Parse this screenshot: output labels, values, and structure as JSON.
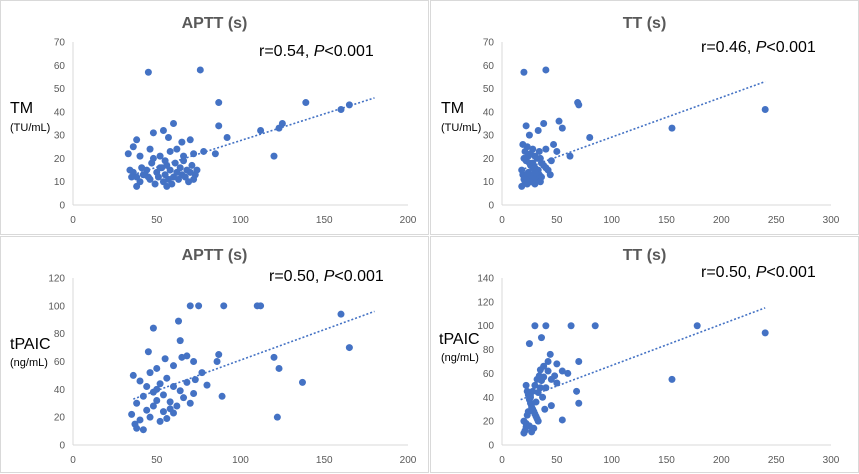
{
  "colors": {
    "points": "#4472c4",
    "trend": "#4472c4",
    "axis": "#d9d9d9",
    "tick": "#595959"
  },
  "chart_data": [
    {
      "id": "tl",
      "type": "scatter",
      "title": "APTT (s)",
      "ylabel": "TM",
      "yunit": "(TU/mL)",
      "stat_prefix": "r=0.54, ",
      "stat_p": "P",
      "stat_suffix": "<0.001",
      "xlim": [
        0,
        200
      ],
      "xticks": [
        0,
        50,
        100,
        150,
        200
      ],
      "ylim": [
        0,
        70
      ],
      "yticks": [
        0,
        10,
        20,
        30,
        40,
        50,
        60,
        70
      ],
      "trend": [
        [
          36,
          13
        ],
        [
          180,
          46
        ]
      ],
      "points": [
        [
          45,
          57
        ],
        [
          76,
          58
        ],
        [
          87,
          44
        ],
        [
          139,
          44
        ],
        [
          165,
          43
        ],
        [
          160,
          41
        ],
        [
          125,
          35
        ],
        [
          123,
          33
        ],
        [
          112,
          32
        ],
        [
          87,
          34
        ],
        [
          120,
          21
        ],
        [
          92,
          29
        ],
        [
          85,
          22
        ],
        [
          60,
          35
        ],
        [
          54,
          32
        ],
        [
          48,
          31
        ],
        [
          57,
          29
        ],
        [
          65,
          27
        ],
        [
          70,
          28
        ],
        [
          78,
          23
        ],
        [
          72,
          22
        ],
        [
          38,
          28
        ],
        [
          36,
          25
        ],
        [
          40,
          21
        ],
        [
          33,
          22
        ],
        [
          46,
          24
        ],
        [
          52,
          21
        ],
        [
          55,
          19
        ],
        [
          58,
          23
        ],
        [
          62,
          24
        ],
        [
          34,
          15
        ],
        [
          36,
          14
        ],
        [
          38,
          12
        ],
        [
          40,
          10
        ],
        [
          41,
          16
        ],
        [
          43,
          13
        ],
        [
          44,
          15
        ],
        [
          46,
          11
        ],
        [
          47,
          18
        ],
        [
          49,
          9
        ],
        [
          50,
          14
        ],
        [
          51,
          12
        ],
        [
          53,
          16
        ],
        [
          54,
          10
        ],
        [
          55,
          13
        ],
        [
          56,
          17
        ],
        [
          57,
          11
        ],
        [
          58,
          15
        ],
        [
          59,
          9
        ],
        [
          60,
          12
        ],
        [
          61,
          18
        ],
        [
          62,
          14
        ],
        [
          63,
          11
        ],
        [
          64,
          16
        ],
        [
          65,
          13
        ],
        [
          66,
          19
        ],
        [
          67,
          12
        ],
        [
          68,
          15
        ],
        [
          69,
          10
        ],
        [
          70,
          14
        ],
        [
          71,
          17
        ],
        [
          72,
          11
        ],
        [
          73,
          13
        ],
        [
          35,
          12
        ],
        [
          38,
          8
        ],
        [
          42,
          13
        ],
        [
          48,
          20
        ],
        [
          52,
          16
        ],
        [
          56,
          8
        ],
        [
          66,
          21
        ],
        [
          74,
          15
        ],
        [
          45,
          12
        ]
      ]
    },
    {
      "id": "tr",
      "type": "scatter",
      "title": "TT (s)",
      "ylabel": "TM",
      "yunit": "(TU/mL)",
      "stat_prefix": "r=0.46, ",
      "stat_p": "P",
      "stat_suffix": "<0.001",
      "xlim": [
        0,
        300
      ],
      "xticks": [
        0,
        50,
        100,
        150,
        200,
        250,
        300
      ],
      "ylim": [
        0,
        70
      ],
      "yticks": [
        0,
        10,
        20,
        30,
        40,
        50,
        60,
        70
      ],
      "trend": [
        [
          17,
          15
        ],
        [
          240,
          53
        ]
      ],
      "points": [
        [
          20,
          57
        ],
        [
          40,
          58
        ],
        [
          69,
          44
        ],
        [
          70,
          43
        ],
        [
          240,
          41
        ],
        [
          155,
          33
        ],
        [
          52,
          36
        ],
        [
          55,
          33
        ],
        [
          38,
          35
        ],
        [
          33,
          32
        ],
        [
          22,
          34
        ],
        [
          80,
          29
        ],
        [
          62,
          21
        ],
        [
          47,
          26
        ],
        [
          50,
          23
        ],
        [
          25,
          30
        ],
        [
          19,
          26
        ],
        [
          21,
          23
        ],
        [
          23,
          25
        ],
        [
          26,
          22
        ],
        [
          28,
          24
        ],
        [
          30,
          21
        ],
        [
          32,
          20
        ],
        [
          34,
          23
        ],
        [
          36,
          18
        ],
        [
          38,
          17
        ],
        [
          40,
          16
        ],
        [
          42,
          15
        ],
        [
          44,
          13
        ],
        [
          18,
          15
        ],
        [
          19,
          13
        ],
        [
          20,
          11
        ],
        [
          21,
          10
        ],
        [
          22,
          12
        ],
        [
          23,
          9
        ],
        [
          24,
          14
        ],
        [
          25,
          11
        ],
        [
          26,
          13
        ],
        [
          27,
          10
        ],
        [
          28,
          16
        ],
        [
          29,
          12
        ],
        [
          30,
          9
        ],
        [
          31,
          14
        ],
        [
          32,
          11
        ],
        [
          33,
          15
        ],
        [
          34,
          13
        ],
        [
          35,
          10
        ],
        [
          36,
          12
        ],
        [
          22,
          19
        ],
        [
          24,
          21
        ],
        [
          26,
          17
        ],
        [
          28,
          18
        ],
        [
          30,
          16
        ],
        [
          18,
          8
        ],
        [
          20,
          20
        ],
        [
          45,
          19
        ],
        [
          35,
          20
        ],
        [
          40,
          24
        ],
        [
          25,
          18
        ],
        [
          30,
          14
        ]
      ]
    },
    {
      "id": "bl",
      "type": "scatter",
      "title": "APTT (s)",
      "ylabel": "tPAIC",
      "yunit": "(ng/mL)",
      "stat_prefix": "r=0.50, ",
      "stat_p": "P",
      "stat_suffix": "<0.001",
      "xlim": [
        0,
        200
      ],
      "xticks": [
        0,
        50,
        100,
        150,
        200
      ],
      "ylim": [
        0,
        120
      ],
      "yticks": [
        0,
        20,
        40,
        60,
        80,
        100,
        120
      ],
      "trend": [
        [
          36,
          33
        ],
        [
          180,
          96
        ]
      ],
      "points": [
        [
          70,
          100
        ],
        [
          75,
          100
        ],
        [
          90,
          100
        ],
        [
          110,
          100
        ],
        [
          112,
          100
        ],
        [
          160,
          94
        ],
        [
          165,
          70
        ],
        [
          48,
          84
        ],
        [
          63,
          89
        ],
        [
          87,
          65
        ],
        [
          86,
          60
        ],
        [
          120,
          63
        ],
        [
          123,
          55
        ],
        [
          137,
          45
        ],
        [
          122,
          20
        ],
        [
          89,
          35
        ],
        [
          55,
          62
        ],
        [
          60,
          57
        ],
        [
          65,
          63
        ],
        [
          68,
          64
        ],
        [
          72,
          60
        ],
        [
          77,
          52
        ],
        [
          73,
          47
        ],
        [
          80,
          43
        ],
        [
          36,
          50
        ],
        [
          40,
          46
        ],
        [
          44,
          42
        ],
        [
          46,
          52
        ],
        [
          48,
          38
        ],
        [
          50,
          40
        ],
        [
          52,
          44
        ],
        [
          54,
          36
        ],
        [
          56,
          48
        ],
        [
          58,
          31
        ],
        [
          60,
          42
        ],
        [
          62,
          28
        ],
        [
          64,
          39
        ],
        [
          66,
          34
        ],
        [
          68,
          45
        ],
        [
          70,
          30
        ],
        [
          72,
          37
        ],
        [
          35,
          22
        ],
        [
          37,
          15
        ],
        [
          38,
          12
        ],
        [
          40,
          18
        ],
        [
          42,
          11
        ],
        [
          44,
          25
        ],
        [
          46,
          20
        ],
        [
          48,
          28
        ],
        [
          50,
          32
        ],
        [
          52,
          17
        ],
        [
          54,
          24
        ],
        [
          56,
          19
        ],
        [
          58,
          26
        ],
        [
          60,
          23
        ],
        [
          45,
          67
        ],
        [
          50,
          55
        ],
        [
          64,
          75
        ],
        [
          38,
          30
        ],
        [
          42,
          35
        ]
      ]
    },
    {
      "id": "br",
      "type": "scatter",
      "title": "TT (s)",
      "ylabel": "tPAIC",
      "yunit": "(ng/mL)",
      "stat_prefix": "r=0.50, ",
      "stat_p": "P",
      "stat_suffix": "<0.001",
      "xlim": [
        0,
        300
      ],
      "xticks": [
        0,
        50,
        100,
        150,
        200,
        250,
        300
      ],
      "ylim": [
        0,
        140
      ],
      "yticks": [
        0,
        20,
        40,
        60,
        80,
        100,
        120,
        140
      ],
      "trend": [
        [
          17,
          38
        ],
        [
          240,
          115
        ]
      ],
      "points": [
        [
          30,
          100
        ],
        [
          40,
          100
        ],
        [
          63,
          100
        ],
        [
          85,
          100
        ],
        [
          178,
          100
        ],
        [
          240,
          94
        ],
        [
          25,
          85
        ],
        [
          36,
          90
        ],
        [
          155,
          55
        ],
        [
          70,
          70
        ],
        [
          68,
          45
        ],
        [
          70,
          35
        ],
        [
          55,
          62
        ],
        [
          60,
          60
        ],
        [
          48,
          58
        ],
        [
          45,
          55
        ],
        [
          50,
          52
        ],
        [
          40,
          48
        ],
        [
          35,
          63
        ],
        [
          38,
          66
        ],
        [
          42,
          70
        ],
        [
          44,
          76
        ],
        [
          22,
          50
        ],
        [
          23,
          45
        ],
        [
          24,
          42
        ],
        [
          25,
          38
        ],
        [
          26,
          35
        ],
        [
          27,
          32
        ],
        [
          28,
          30
        ],
        [
          29,
          28
        ],
        [
          30,
          26
        ],
        [
          31,
          24
        ],
        [
          32,
          22
        ],
        [
          33,
          20
        ],
        [
          22,
          15
        ],
        [
          21,
          12
        ],
        [
          20,
          10
        ],
        [
          22,
          18
        ],
        [
          23,
          25
        ],
        [
          24,
          28
        ],
        [
          26,
          40
        ],
        [
          28,
          45
        ],
        [
          30,
          50
        ],
        [
          32,
          55
        ],
        [
          34,
          58
        ],
        [
          36,
          54
        ],
        [
          38,
          57
        ],
        [
          45,
          33
        ],
        [
          55,
          21
        ],
        [
          20,
          20
        ],
        [
          25,
          16
        ],
        [
          27,
          11
        ],
        [
          29,
          14
        ],
        [
          31,
          36
        ],
        [
          33,
          44
        ],
        [
          35,
          48
        ],
        [
          37,
          40
        ],
        [
          39,
          30
        ],
        [
          42,
          62
        ],
        [
          50,
          68
        ]
      ]
    }
  ]
}
